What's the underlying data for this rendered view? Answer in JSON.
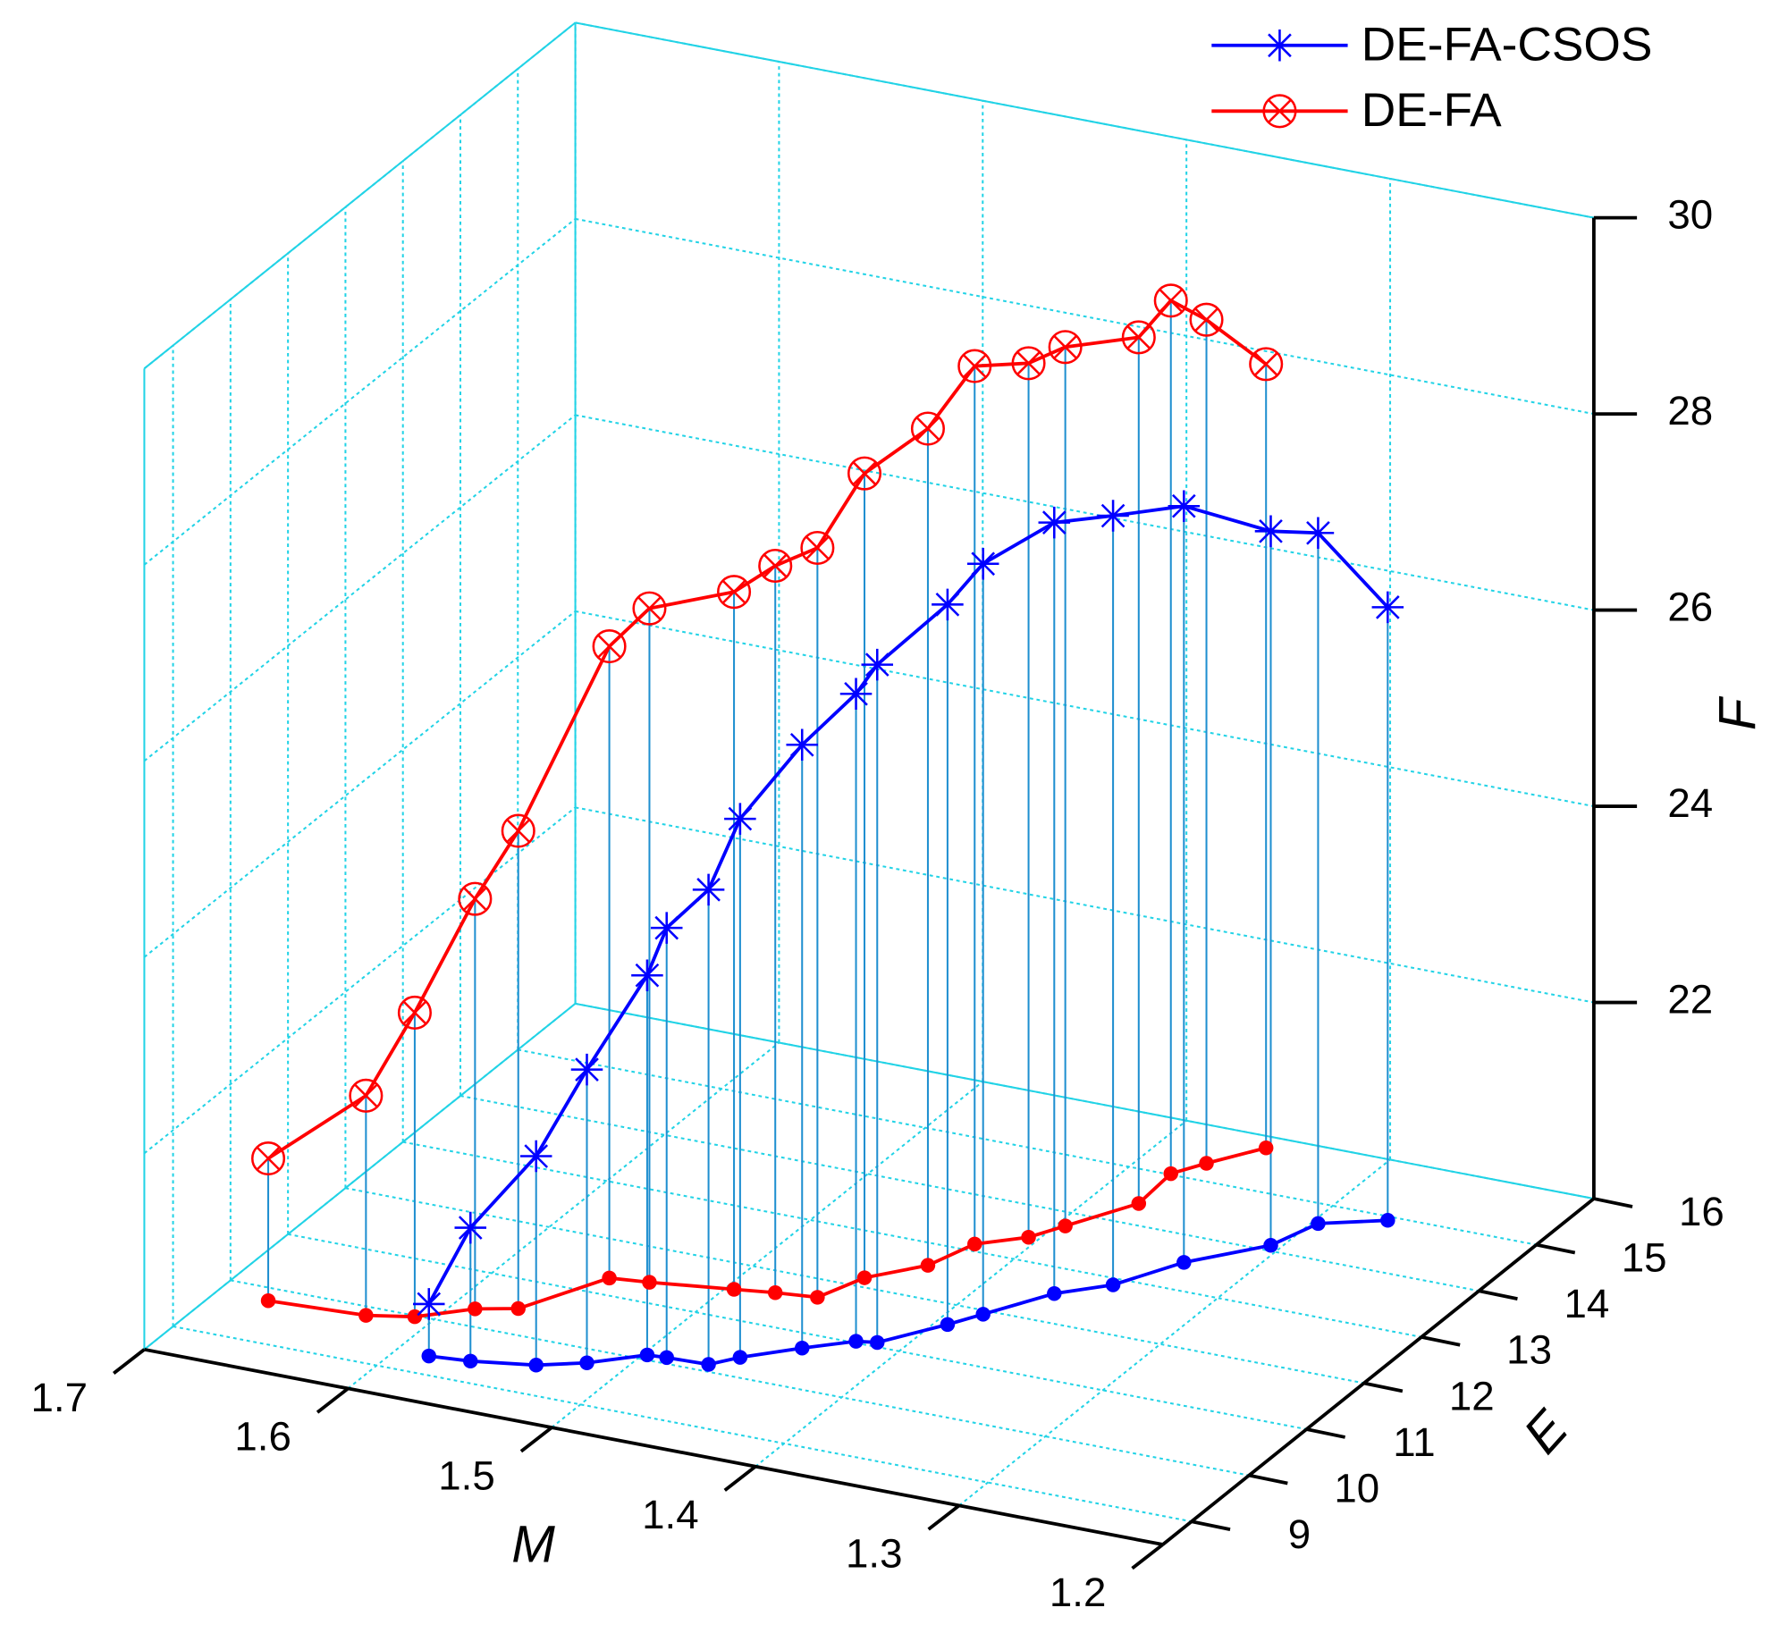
{
  "chart_data": {
    "type": "line3d",
    "xlabel": "M",
    "ylabel": "E",
    "zlabel": "F",
    "xlim": [
      1.7,
      1.2
    ],
    "xticks": [
      1.7,
      1.6,
      1.5,
      1.4,
      1.3,
      1.2
    ],
    "ylim": [
      8.5,
      16
    ],
    "yticks": [
      9,
      10,
      11,
      12,
      13,
      14,
      15,
      16
    ],
    "zlim": [
      20,
      30
    ],
    "zticks": [
      22,
      24,
      26,
      28,
      30
    ],
    "grid": true,
    "legend": "top-right",
    "series": [
      {
        "name": "DE-FA-CSOS",
        "color": "#0000ff",
        "x": [
          1.584,
          1.565,
          1.537,
          1.518,
          1.498,
          1.489,
          1.469,
          1.46,
          1.44,
          1.422,
          1.413,
          1.394,
          1.385,
          1.367,
          1.348,
          1.331,
          1.305,
          1.297,
          1.271
        ],
        "y": [
          9.34,
          9.39,
          9.54,
          9.75,
          10.09,
          10.11,
          10.13,
          10.36,
          10.73,
          11.03,
          11.08,
          11.63,
          11.93,
          12.53,
          12.88,
          13.51,
          14.1,
          14.64,
          14.93
        ],
        "z": [
          20.53,
          21.36,
          22.13,
          22.99,
          23.87,
          24.38,
          24.84,
          25.49,
          26.15,
          26.6,
          26.91,
          27.34,
          27.65,
          27.86,
          27.84,
          27.71,
          27.28,
          27.04,
          26.25
        ]
      },
      {
        "name": "DE-FA",
        "color": "#ff0000",
        "x": [
          1.675,
          1.629,
          1.609,
          1.589,
          1.572,
          1.551,
          1.533,
          1.496,
          1.478,
          1.459,
          1.45,
          1.431,
          1.423,
          1.405,
          1.396,
          1.378,
          1.38,
          1.371,
          1.355
        ],
        "y": [
          9.77,
          9.84,
          9.98,
          10.32,
          10.47,
          11.31,
          11.37,
          11.53,
          11.61,
          11.67,
          12.17,
          12.6,
          13.13,
          13.43,
          13.75,
          14.39,
          15.02,
          15.32,
          15.79
        ],
        "z": [
          21.45,
          22.24,
          23.1,
          24.18,
          24.87,
          26.44,
          26.87,
          27.11,
          27.41,
          27.64,
          28.2,
          28.53,
          28.95,
          28.91,
          28.96,
          28.83,
          28.9,
          28.6,
          27.99
        ]
      }
    ]
  }
}
